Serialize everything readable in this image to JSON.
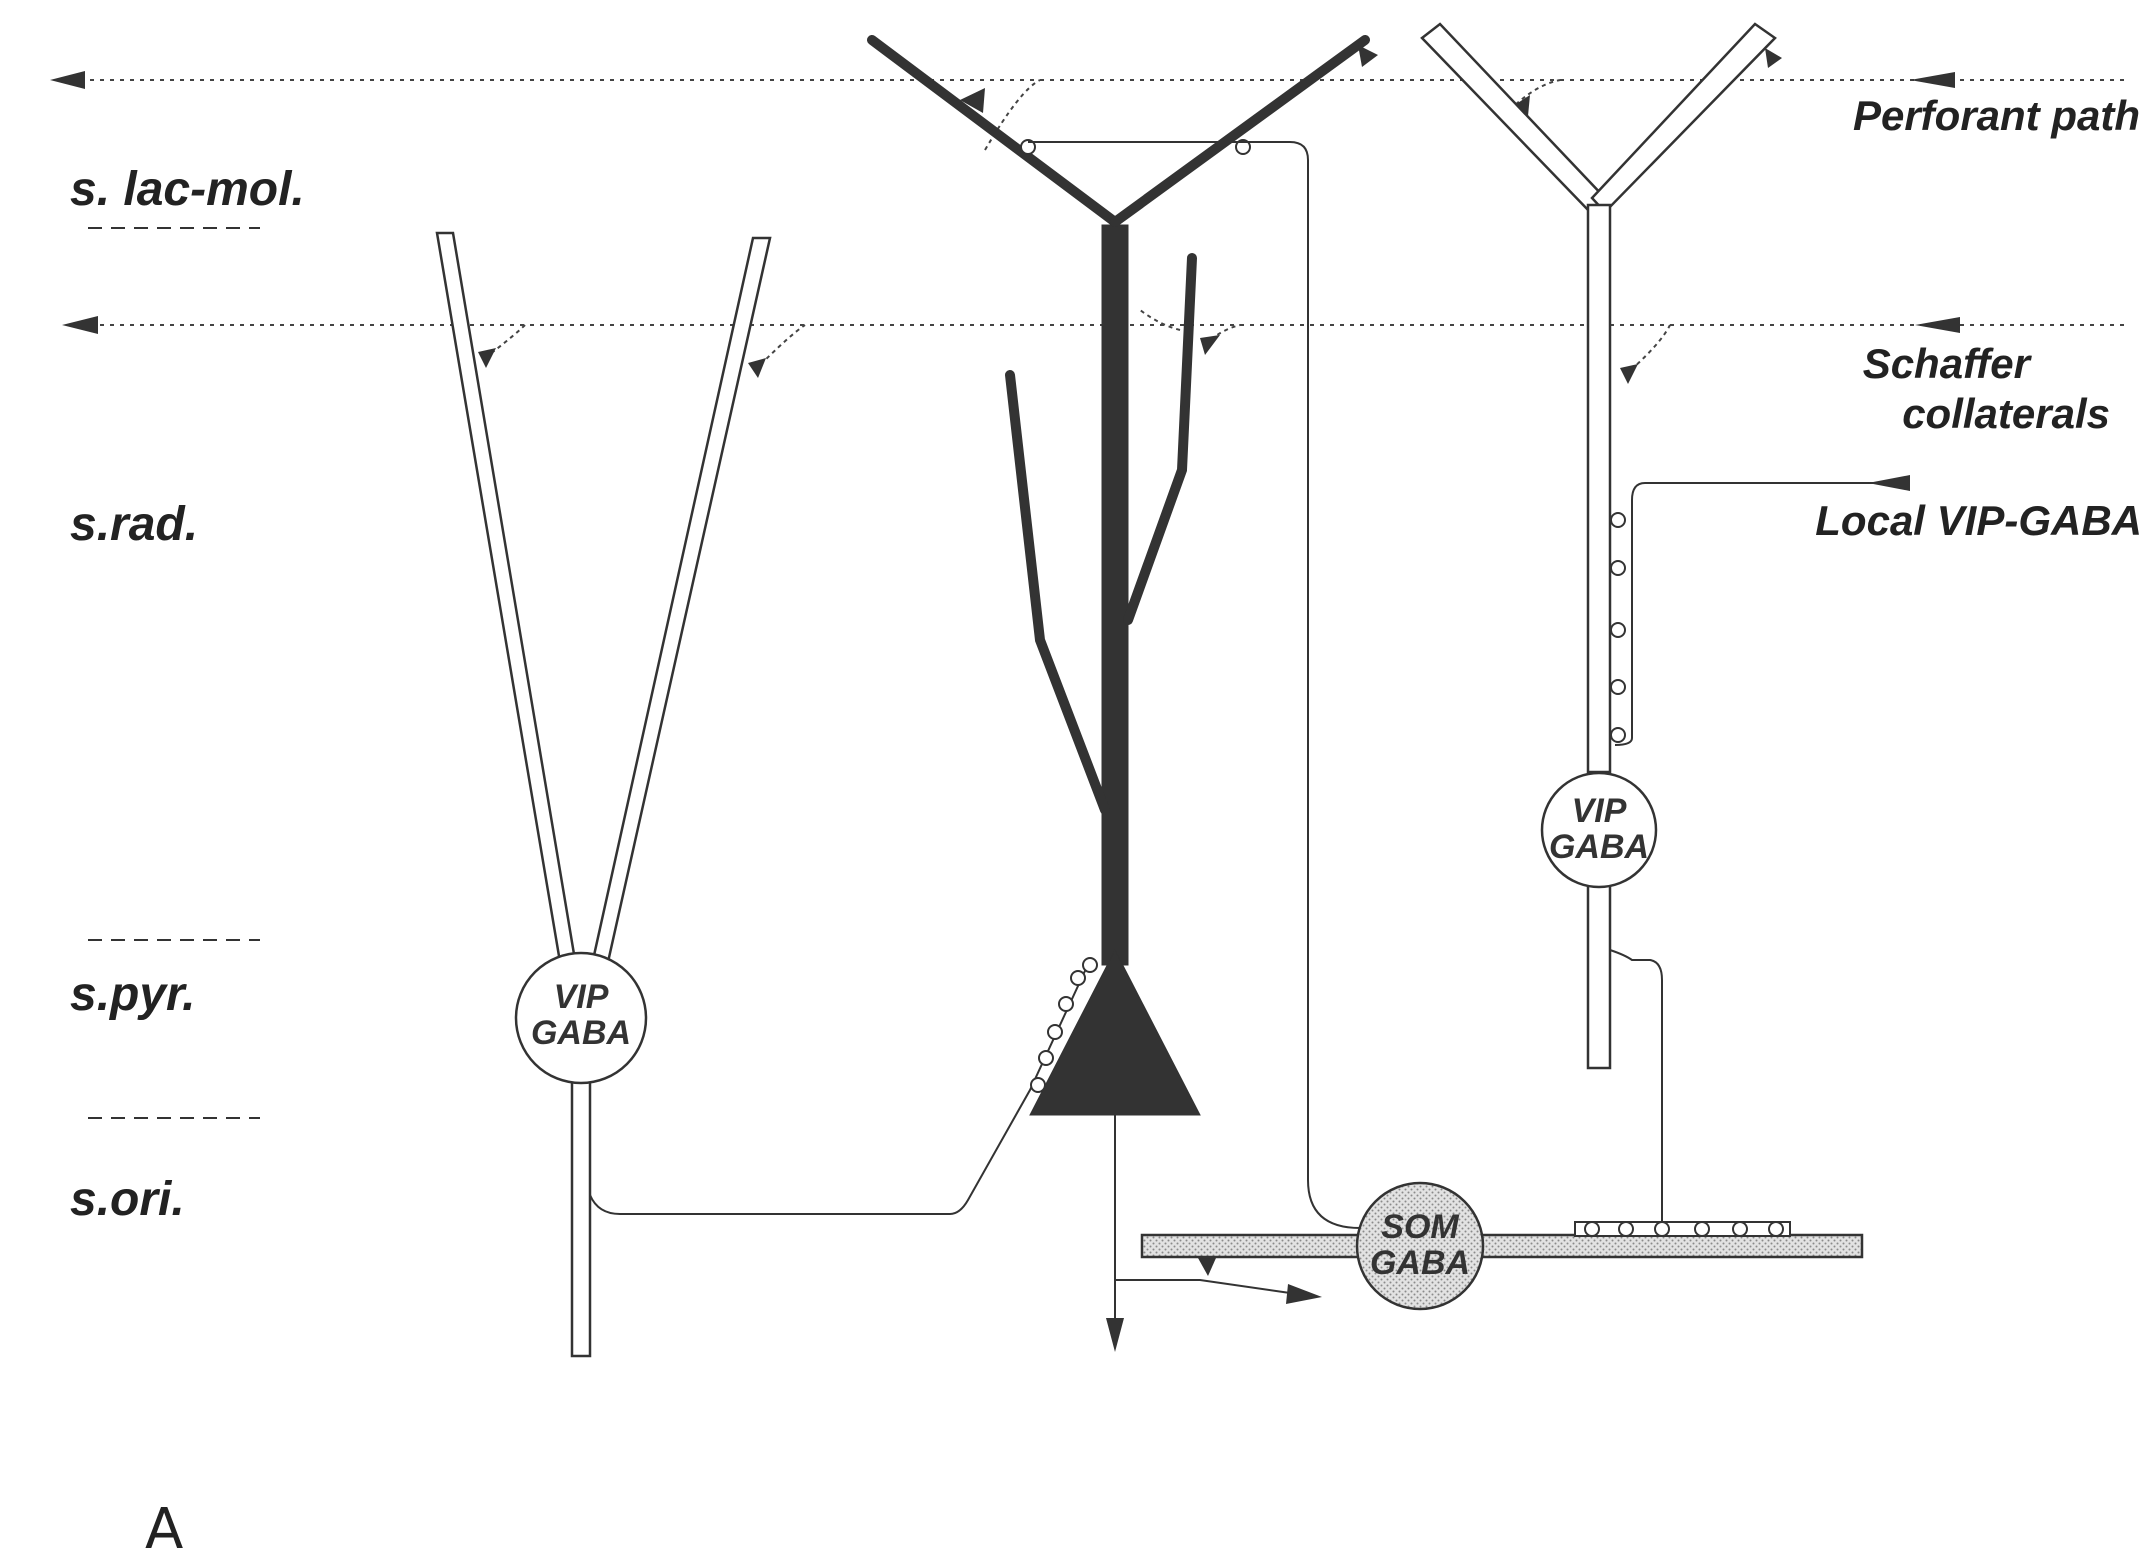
{
  "layers": {
    "lac_mol": "s. lac-mol.",
    "rad": "s.rad.",
    "pyr": "s.pyr.",
    "ori": "s.ori."
  },
  "inputs": {
    "perforant_path": "Perforant path",
    "schaffer_line1": "Schaffer",
    "schaffer_line2": "collaterals",
    "local_vip": "Local VIP-GABA"
  },
  "cells": {
    "vip_left_line1": "VIP",
    "vip_left_line2": "GABA",
    "vip_right_line1": "VIP",
    "vip_right_line2": "GABA",
    "som_line1": "SOM",
    "som_line2": "GABA"
  },
  "panel_label": "A",
  "colors": {
    "pyramidal": "#333333",
    "som_fill": "#d8d8d8",
    "line": "#333333"
  }
}
